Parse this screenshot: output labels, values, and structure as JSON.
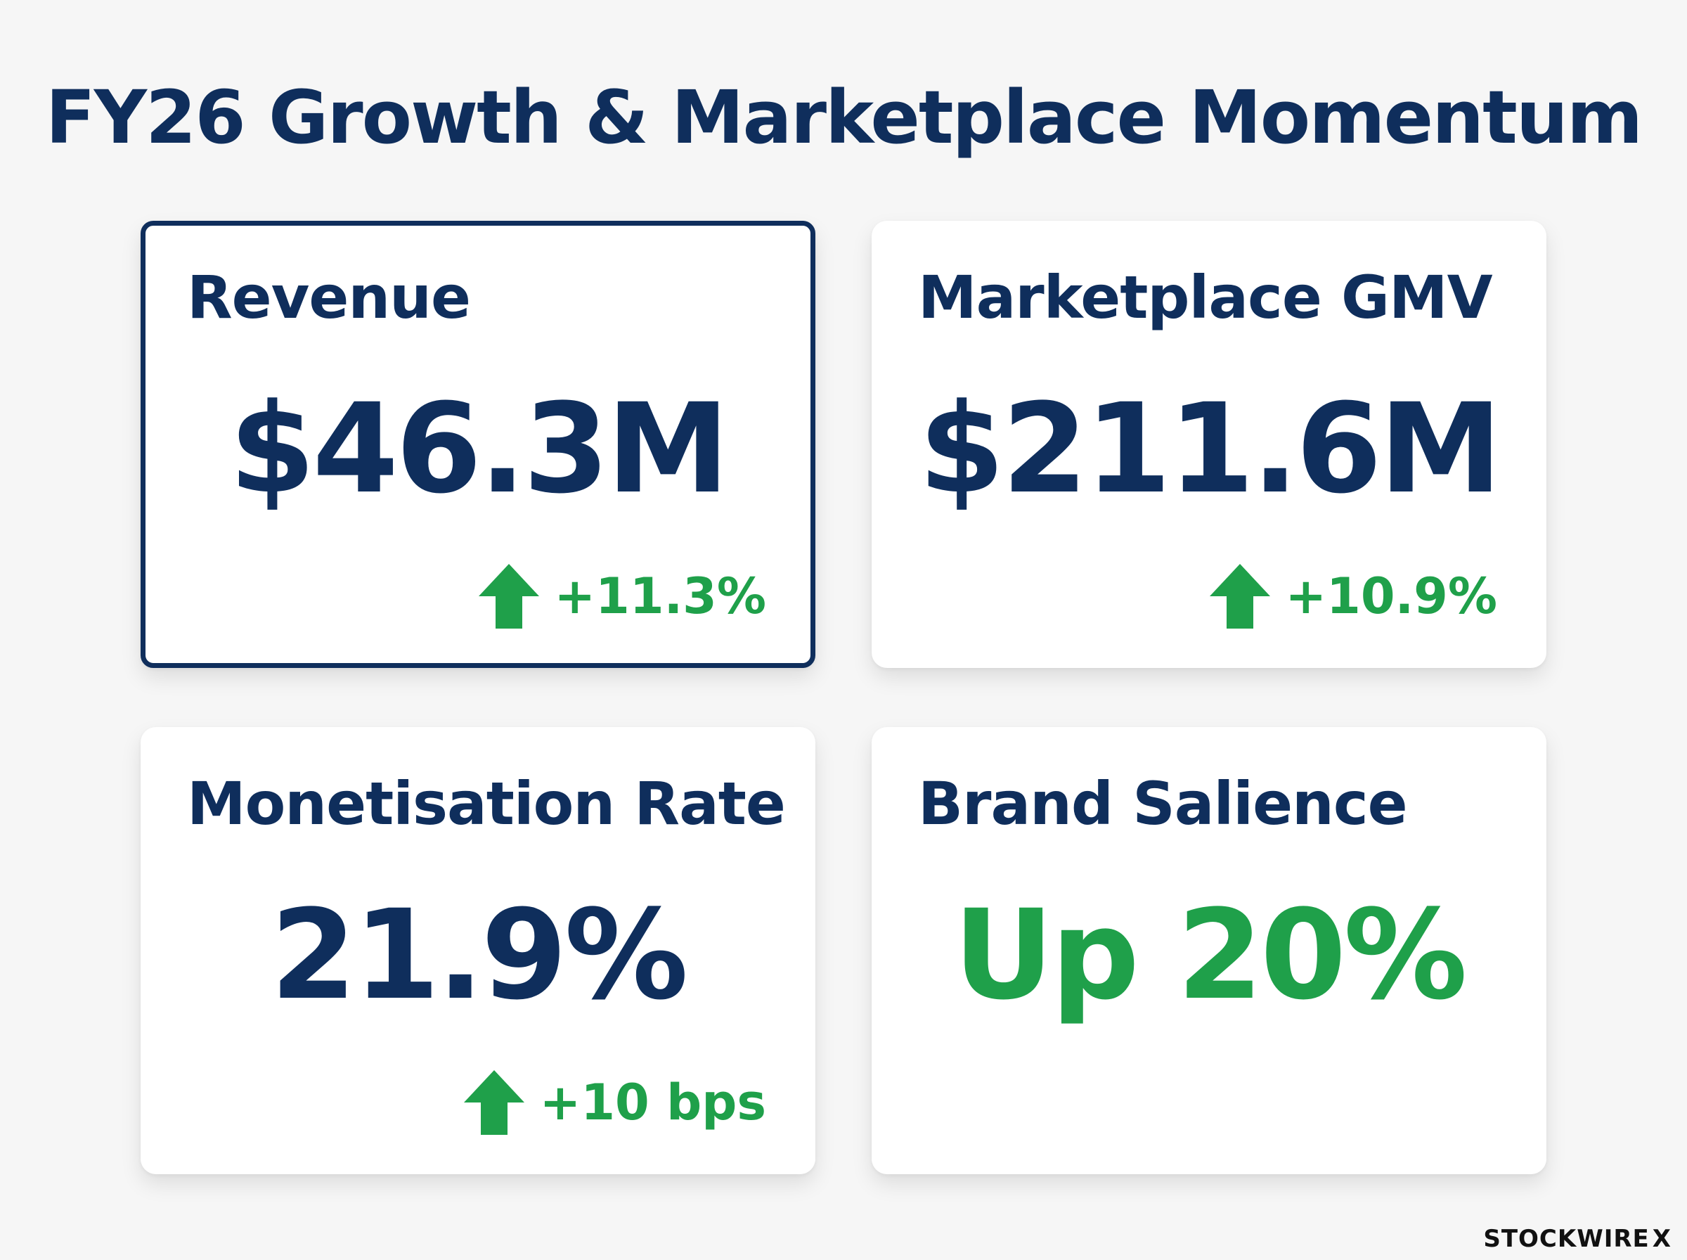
{
  "title": "FY26 Growth & Marketplace Momentum",
  "cards": [
    {
      "label": "Revenue",
      "value": "$46.3M",
      "delta": "+11.3%",
      "delta_direction": "up",
      "selected": true
    },
    {
      "label": "Marketplace GMV",
      "value": "$211.6M",
      "delta": "+10.9%",
      "delta_direction": "up",
      "selected": false
    },
    {
      "label": "Monetisation Rate",
      "value": "21.9%",
      "delta": "+10 bps",
      "delta_direction": "up",
      "selected": false
    },
    {
      "label": "Brand Salience",
      "value": "Up 20%",
      "value_color": "#1fa04a",
      "selected": false
    }
  ],
  "brand": {
    "name": "STOCKWIRE",
    "mark": "X"
  },
  "colors": {
    "primary": "#0f2e5c",
    "positive": "#1fa04a",
    "background": "#f6f6f6",
    "card": "#ffffff"
  },
  "icons": {
    "delta_icon": "arrow-up-icon"
  }
}
